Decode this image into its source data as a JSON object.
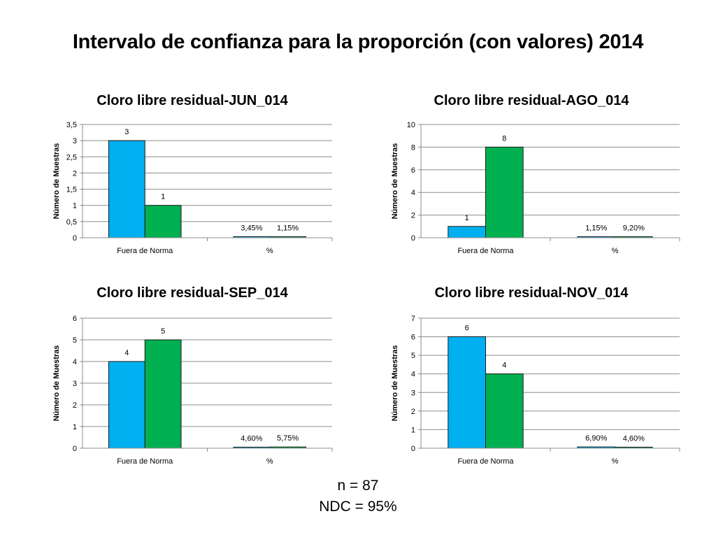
{
  "page": {
    "title": "Intervalo de confianza para la proporción (con valores) 2014",
    "footer": {
      "n": "n = 87",
      "ndc": "NDC = 95%"
    }
  },
  "colors": {
    "series1": "#00b0f0",
    "series2": "#00b050",
    "grid": "#8c8c8c",
    "axis": "#8c8c8c"
  },
  "chart_data": [
    {
      "type": "bar",
      "title": "Cloro libre residual-JUN_014",
      "ylabel": "Número de Muestras",
      "xlabel": "",
      "categories": [
        "Fuera de Norma",
        "%"
      ],
      "ylim": [
        0,
        3.5
      ],
      "yticks": [
        "0",
        "0,5",
        "1",
        "1,5",
        "2",
        "2,5",
        "3",
        "3,5"
      ],
      "ytick_values": [
        0,
        0.5,
        1,
        1.5,
        2,
        2.5,
        3,
        3.5
      ],
      "series": [
        {
          "values": [
            3,
            0.0345
          ],
          "labels": [
            "3",
            "3,45%"
          ]
        },
        {
          "values": [
            1,
            0.0115
          ],
          "labels": [
            "1",
            "1,15%"
          ]
        }
      ],
      "grid": true,
      "legend": "none"
    },
    {
      "type": "bar",
      "title": "Cloro libre residual-AGO_014",
      "ylabel": "Número de Muestras",
      "xlabel": "",
      "categories": [
        "Fuera de Norma",
        "%"
      ],
      "ylim": [
        0,
        10
      ],
      "yticks": [
        "0",
        "2",
        "4",
        "6",
        "8",
        "10"
      ],
      "ytick_values": [
        0,
        2,
        4,
        6,
        8,
        10
      ],
      "series": [
        {
          "values": [
            1,
            0.0115
          ],
          "labels": [
            "1",
            "1,15%"
          ]
        },
        {
          "values": [
            8,
            0.092
          ],
          "labels": [
            "8",
            "9,20%"
          ]
        }
      ],
      "grid": true,
      "legend": "none"
    },
    {
      "type": "bar",
      "title": "Cloro libre residual-SEP_014",
      "ylabel": "Número de Muestras",
      "xlabel": "",
      "categories": [
        "Fuera de Norma",
        "%"
      ],
      "ylim": [
        0,
        6
      ],
      "yticks": [
        "0",
        "1",
        "2",
        "3",
        "4",
        "5",
        "6"
      ],
      "ytick_values": [
        0,
        1,
        2,
        3,
        4,
        5,
        6
      ],
      "series": [
        {
          "values": [
            4,
            0.046
          ],
          "labels": [
            "4",
            "4,60%"
          ]
        },
        {
          "values": [
            5,
            0.0575
          ],
          "labels": [
            "5",
            "5,75%"
          ]
        }
      ],
      "grid": true,
      "legend": "none"
    },
    {
      "type": "bar",
      "title": "Cloro libre residual-NOV_014",
      "ylabel": "Número de Muestras",
      "xlabel": "",
      "categories": [
        "Fuera de Norma",
        "%"
      ],
      "ylim": [
        0,
        7
      ],
      "yticks": [
        "0",
        "1",
        "2",
        "3",
        "4",
        "5",
        "6",
        "7"
      ],
      "ytick_values": [
        0,
        1,
        2,
        3,
        4,
        5,
        6,
        7
      ],
      "series": [
        {
          "values": [
            6,
            0.069
          ],
          "labels": [
            "6",
            "6,90%"
          ]
        },
        {
          "values": [
            4,
            0.046
          ],
          "labels": [
            "4",
            "4,60%"
          ]
        }
      ],
      "grid": true,
      "legend": "none"
    }
  ]
}
